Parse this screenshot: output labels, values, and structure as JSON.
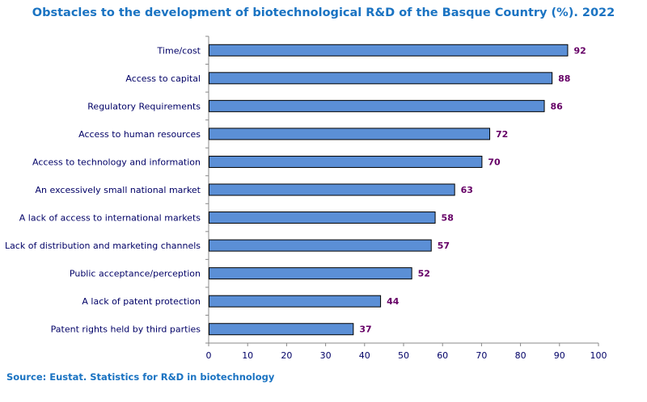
{
  "title": "Obstacles to the development of biotechnological R&D of the Basque Country (%). 2022",
  "source": "Source: Eustat. Statistics for R&D in biotechnology",
  "chart_data": {
    "type": "bar",
    "orientation": "horizontal",
    "categories": [
      "Time/cost",
      "Access to capital",
      "Regulatory Requirements",
      "Access to human resources",
      "Access to technology and information",
      "An excessively small national market",
      "A lack of access to international markets",
      "Lack of distribution and marketing channels",
      "Public acceptance/perception",
      "A lack of patent protection",
      "Patent rights held by third parties"
    ],
    "values": [
      92,
      88,
      86,
      72,
      70,
      63,
      58,
      57,
      52,
      44,
      37
    ],
    "xlim": [
      0,
      100
    ],
    "xticks": [
      0,
      10,
      20,
      30,
      40,
      50,
      60,
      70,
      80,
      90,
      100
    ],
    "bar_color": "#5b8fd6",
    "bar_edge_color": "#000000",
    "label_color": "#660066",
    "title_color": "#1a73c2",
    "legend": false,
    "grid": false
  }
}
